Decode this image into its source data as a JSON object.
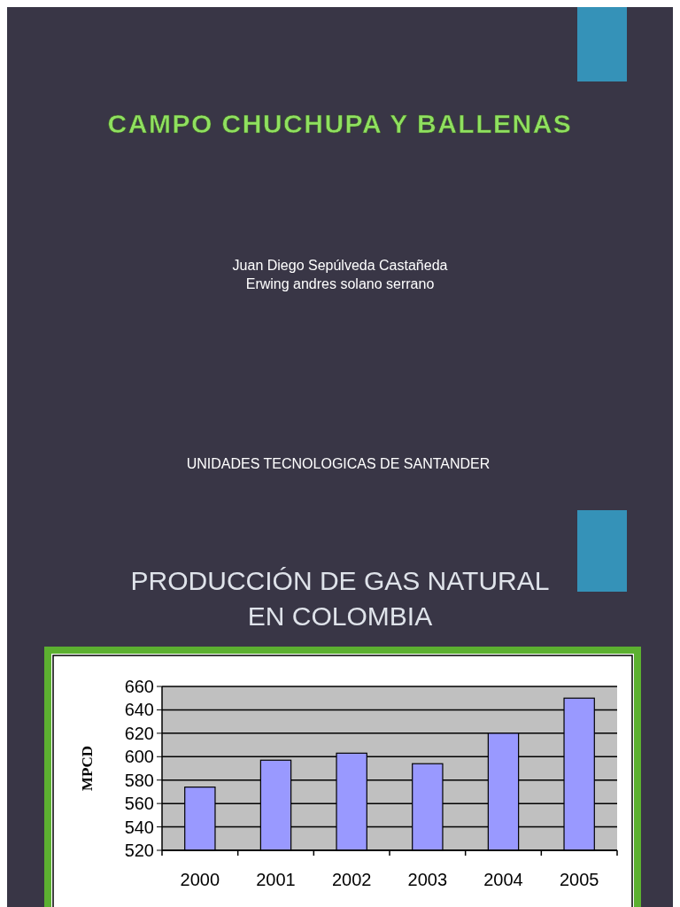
{
  "chart_data": {
    "type": "bar",
    "title": "PRODUCCIÓN DE GAS NATURAL EN COLOMBIA",
    "ylabel": "MPCD",
    "annotations": [
      "CAMPO CHUCHUPA Y BALLENAS",
      "Juan Diego Sepúlveda Castañeda",
      "Erwing andres solano serrano",
      "UNIDADES TECNOLOGICAS DE SANTANDER"
    ],
    "categories": [
      "2000",
      "2001",
      "2002",
      "2003",
      "2004",
      "2005"
    ],
    "values": [
      574,
      597,
      603,
      594,
      620,
      650
    ],
    "color": "#9999ff",
    "ylim": [
      520,
      660
    ],
    "yticks": [
      520,
      540,
      560,
      580,
      600,
      620,
      640,
      660
    ],
    "grid": "y"
  }
}
